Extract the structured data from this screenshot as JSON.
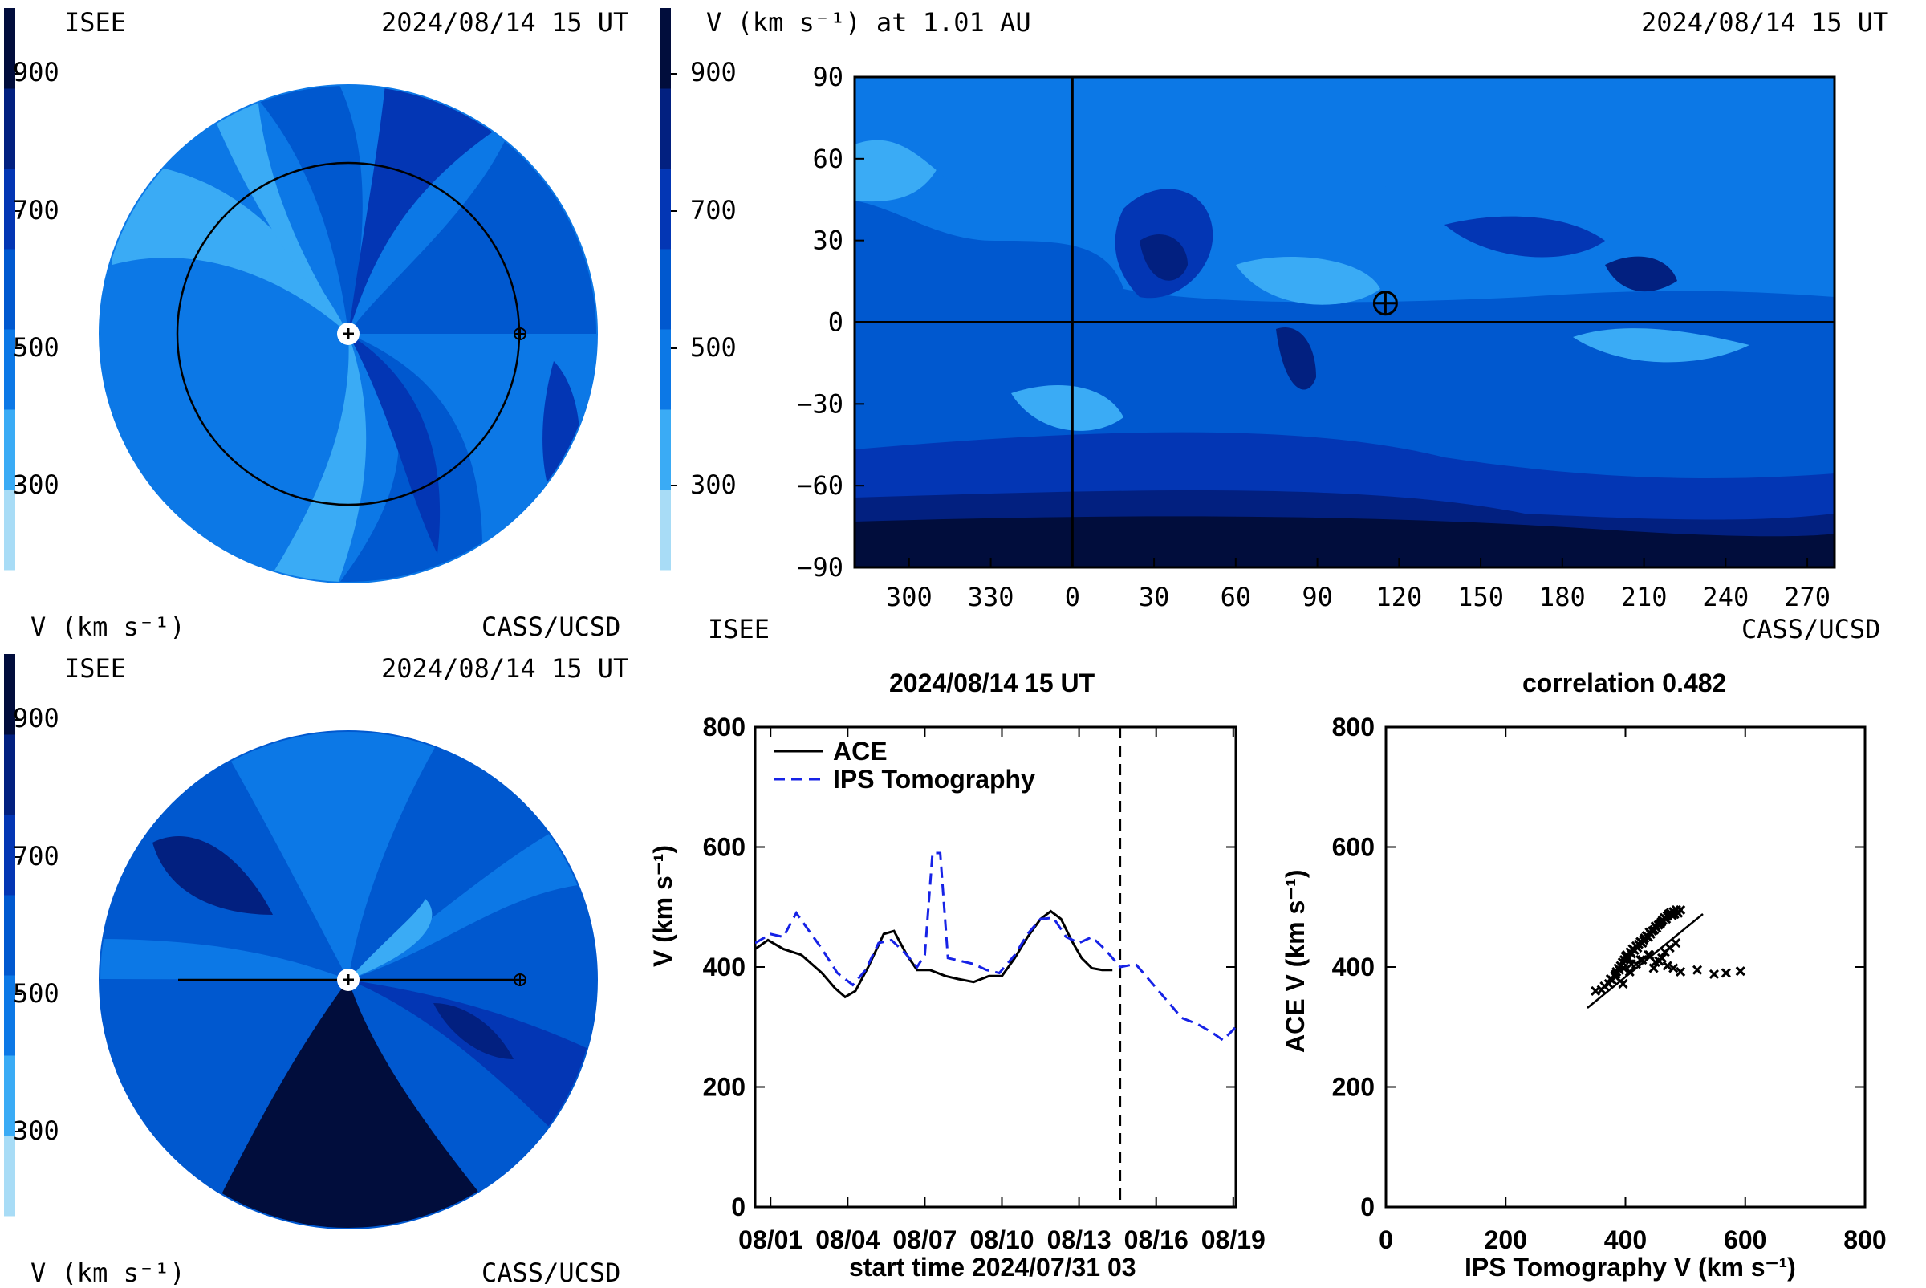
{
  "colors": {
    "scale": [
      "#a8dcf6",
      "#3aabf5",
      "#0c78e6",
      "#0058cf",
      "#0336b4",
      "#022080",
      "#010d3c"
    ],
    "ace": "#000000",
    "ips": "#1622e6"
  },
  "polar_top": {
    "org_left": "ISEE",
    "timestamp": "2024/08/14 15 UT",
    "colorbar_label": "V (km s⁻¹)",
    "credit": "CASS/UCSD",
    "ticks": [
      "900",
      "700",
      "500",
      "300"
    ]
  },
  "polar_bottom": {
    "org_left": "ISEE",
    "timestamp": "2024/08/14 15 UT",
    "colorbar_label": "V (km s⁻¹)",
    "credit": "CASS/UCSD",
    "ticks": [
      "900",
      "700",
      "500",
      "300"
    ]
  },
  "map": {
    "title": "V (km s⁻¹) at 1.01 AU",
    "timestamp": "2024/08/14 15 UT",
    "org": "ISEE",
    "credit": "CASS/UCSD",
    "colorbar_ticks": [
      "900",
      "700",
      "500",
      "300"
    ],
    "y_ticks": [
      "90",
      "60",
      "30",
      "0",
      "−30",
      "−60",
      "−90"
    ],
    "x_ticks": [
      "300",
      "330",
      "0",
      "30",
      "60",
      "90",
      "120",
      "150",
      "180",
      "210",
      "240",
      "270"
    ],
    "earth_marker": {
      "longitude": 115,
      "latitude": 7
    }
  },
  "timeseries": {
    "title": "2024/08/14 15 UT",
    "xlabel": "start time 2024/07/31 03",
    "ylabel": "V (km s⁻¹)",
    "legend": [
      "ACE",
      "IPS Tomography"
    ]
  },
  "scatter": {
    "title": "correlation 0.482",
    "xlabel": "IPS Tomography V (km s⁻¹)",
    "ylabel": "ACE V (km s⁻¹)"
  },
  "chart_data": [
    {
      "type": "line",
      "title": "2024/08/14 15 UT",
      "xlabel": "start time 2024/07/31 03",
      "ylabel": "V (km s⁻¹)",
      "x_tick_labels": [
        "08/01",
        "08/04",
        "08/07",
        "08/10",
        "08/13",
        "08/16",
        "08/19"
      ],
      "x_tick_days": [
        1,
        4,
        7,
        10,
        13,
        16,
        19
      ],
      "xlim": [
        0.4,
        19.1
      ],
      "ylim": [
        0,
        800
      ],
      "y_ticks": [
        0,
        200,
        400,
        600,
        800
      ],
      "vline_day": 14.6,
      "legend_position": "top-left",
      "series": [
        {
          "name": "ACE",
          "style": "solid",
          "x": [
            0.4,
            0.9,
            1.5,
            2.2,
            3.0,
            3.5,
            3.9,
            4.3,
            4.8,
            5.4,
            5.8,
            6.3,
            6.7,
            7.2,
            7.8,
            8.3,
            8.9,
            9.5,
            10.0,
            10.5,
            11.0,
            11.5,
            11.9,
            12.3,
            12.7,
            13.1,
            13.5,
            13.9,
            14.3
          ],
          "values": [
            430,
            445,
            430,
            420,
            390,
            365,
            350,
            360,
            400,
            455,
            460,
            420,
            395,
            395,
            385,
            380,
            375,
            385,
            385,
            415,
            450,
            480,
            493,
            480,
            445,
            415,
            398,
            395,
            395
          ]
        },
        {
          "name": "IPS Tomography",
          "style": "dashed",
          "x": [
            0.4,
            1.0,
            1.5,
            2.0,
            2.5,
            3.0,
            3.6,
            4.2,
            4.7,
            5.2,
            5.7,
            6.2,
            6.7,
            7.0,
            7.3,
            7.6,
            7.9,
            8.4,
            8.9,
            9.4,
            9.9,
            10.5,
            11.0,
            11.5,
            12.0,
            12.5,
            13.0,
            13.5,
            14.0,
            14.6,
            15.2,
            15.8,
            16.4,
            17.0,
            17.6,
            18.2,
            18.6,
            19.1
          ],
          "values": [
            440,
            455,
            450,
            490,
            460,
            430,
            390,
            370,
            395,
            440,
            445,
            425,
            400,
            420,
            590,
            590,
            415,
            410,
            405,
            395,
            390,
            420,
            455,
            480,
            482,
            450,
            440,
            450,
            430,
            400,
            405,
            375,
            345,
            315,
            305,
            290,
            278,
            300
          ]
        }
      ]
    },
    {
      "type": "scatter",
      "title": "correlation 0.482",
      "xlabel": "IPS Tomography V (km s⁻¹)",
      "ylabel": "ACE V (km s⁻¹)",
      "xlim": [
        0,
        800
      ],
      "ylim": [
        0,
        800
      ],
      "x_ticks": [
        0,
        200,
        400,
        600,
        800
      ],
      "y_ticks": [
        0,
        200,
        400,
        600,
        800
      ],
      "x": [
        350,
        360,
        365,
        372,
        378,
        382,
        385,
        388,
        390,
        392,
        395,
        398,
        400,
        402,
        405,
        408,
        410,
        412,
        415,
        418,
        420,
        422,
        425,
        428,
        430,
        432,
        435,
        438,
        440,
        442,
        445,
        448,
        450,
        452,
        455,
        458,
        460,
        462,
        465,
        468,
        470,
        472,
        475,
        478,
        480,
        482,
        485,
        488,
        492,
        375,
        384,
        396,
        407,
        418,
        428,
        438,
        447,
        456,
        466,
        474,
        484,
        397,
        410,
        425,
        440,
        450,
        461,
        470,
        480,
        492,
        520,
        548,
        568,
        592
      ],
      "values": [
        360,
        362,
        368,
        372,
        378,
        385,
        392,
        398,
        395,
        402,
        408,
        412,
        418,
        420,
        415,
        425,
        422,
        430,
        428,
        435,
        432,
        438,
        442,
        440,
        445,
        448,
        452,
        450,
        458,
        455,
        460,
        462,
        468,
        465,
        470,
        472,
        475,
        478,
        482,
        480,
        485,
        488,
        490,
        486,
        492,
        488,
        495,
        490,
        495,
        380,
        388,
        372,
        392,
        405,
        412,
        420,
        398,
        410,
        425,
        432,
        440,
        398,
        405,
        412,
        420,
        408,
        415,
        402,
        398,
        392,
        395,
        388,
        390,
        393
      ]
    }
  ]
}
